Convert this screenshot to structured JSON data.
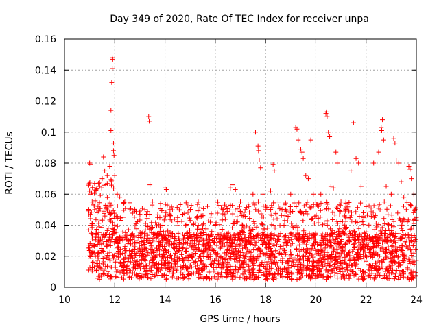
{
  "chart_data": {
    "type": "scatter",
    "title": "Day 349 of 2020, Rate Of TEC Index for receiver unpa",
    "xlabel": "GPS time / hours",
    "ylabel": "ROTI / TECUs",
    "xlim": [
      10,
      24
    ],
    "ylim": [
      0,
      0.16
    ],
    "x_ticks": [
      10,
      12,
      14,
      16,
      18,
      20,
      22,
      24
    ],
    "x_tick_labels": [
      "10",
      "12",
      "14",
      "16",
      "18",
      "20",
      "22",
      "24"
    ],
    "y_ticks": [
      0,
      0.02,
      0.04,
      0.06,
      0.08,
      0.1,
      0.12,
      0.14,
      0.16
    ],
    "y_tick_labels": [
      "0",
      "0.02",
      "0.04",
      "0.06",
      "0.08",
      "0.1",
      "0.12",
      "0.14",
      "0.16"
    ],
    "grid": true,
    "marker": "+",
    "color": "#ff0000",
    "series": [
      {
        "name": "ROTI",
        "points": [
          [
            11.0,
            0.08
          ],
          [
            11.05,
            0.079
          ],
          [
            11.0,
            0.062
          ],
          [
            11.05,
            0.06
          ],
          [
            11.1,
            0.055
          ],
          [
            11.2,
            0.05
          ],
          [
            11.3,
            0.048
          ],
          [
            11.4,
            0.065
          ],
          [
            11.5,
            0.07
          ],
          [
            11.55,
            0.084
          ],
          [
            11.6,
            0.075
          ],
          [
            11.7,
            0.072
          ],
          [
            11.8,
            0.078
          ],
          [
            11.85,
            0.101
          ],
          [
            11.85,
            0.114
          ],
          [
            11.88,
            0.132
          ],
          [
            11.9,
            0.141
          ],
          [
            11.9,
            0.148
          ],
          [
            11.92,
            0.147
          ],
          [
            11.95,
            0.093
          ],
          [
            11.95,
            0.088
          ],
          [
            11.97,
            0.085
          ],
          [
            12.0,
            0.072
          ],
          [
            12.1,
            0.06
          ],
          [
            12.2,
            0.058
          ],
          [
            12.4,
            0.055
          ],
          [
            12.6,
            0.05
          ],
          [
            12.8,
            0.049
          ],
          [
            13.0,
            0.047
          ],
          [
            13.2,
            0.05
          ],
          [
            13.35,
            0.11
          ],
          [
            13.37,
            0.107
          ],
          [
            13.4,
            0.066
          ],
          [
            13.5,
            0.055
          ],
          [
            13.7,
            0.045
          ],
          [
            14.0,
            0.064
          ],
          [
            14.05,
            0.063
          ],
          [
            14.2,
            0.05
          ],
          [
            14.5,
            0.045
          ],
          [
            15.0,
            0.043
          ],
          [
            15.5,
            0.038
          ],
          [
            15.8,
            0.042
          ],
          [
            16.0,
            0.04
          ],
          [
            16.3,
            0.05
          ],
          [
            16.6,
            0.064
          ],
          [
            16.7,
            0.066
          ],
          [
            16.8,
            0.063
          ],
          [
            17.0,
            0.055
          ],
          [
            17.2,
            0.05
          ],
          [
            17.5,
            0.06
          ],
          [
            17.6,
            0.1
          ],
          [
            17.7,
            0.091
          ],
          [
            17.72,
            0.088
          ],
          [
            17.75,
            0.082
          ],
          [
            17.8,
            0.077
          ],
          [
            17.9,
            0.06
          ],
          [
            18.0,
            0.05
          ],
          [
            18.2,
            0.062
          ],
          [
            18.3,
            0.079
          ],
          [
            18.35,
            0.075
          ],
          [
            18.5,
            0.055
          ],
          [
            18.8,
            0.05
          ],
          [
            19.0,
            0.06
          ],
          [
            19.2,
            0.103
          ],
          [
            19.25,
            0.102
          ],
          [
            19.3,
            0.095
          ],
          [
            19.4,
            0.089
          ],
          [
            19.45,
            0.087
          ],
          [
            19.5,
            0.083
          ],
          [
            19.6,
            0.072
          ],
          [
            19.7,
            0.07
          ],
          [
            19.8,
            0.095
          ],
          [
            19.9,
            0.06
          ],
          [
            20.0,
            0.055
          ],
          [
            20.2,
            0.06
          ],
          [
            20.4,
            0.112
          ],
          [
            20.42,
            0.113
          ],
          [
            20.45,
            0.11
          ],
          [
            20.5,
            0.1
          ],
          [
            20.55,
            0.097
          ],
          [
            20.6,
            0.065
          ],
          [
            20.7,
            0.064
          ],
          [
            20.8,
            0.087
          ],
          [
            20.85,
            0.08
          ],
          [
            21.0,
            0.055
          ],
          [
            21.2,
            0.05
          ],
          [
            21.4,
            0.075
          ],
          [
            21.5,
            0.106
          ],
          [
            21.6,
            0.083
          ],
          [
            21.7,
            0.08
          ],
          [
            21.8,
            0.065
          ],
          [
            22.0,
            0.052
          ],
          [
            22.2,
            0.051
          ],
          [
            22.3,
            0.08
          ],
          [
            22.5,
            0.087
          ],
          [
            22.6,
            0.103
          ],
          [
            22.62,
            0.101
          ],
          [
            22.65,
            0.108
          ],
          [
            22.7,
            0.095
          ],
          [
            22.8,
            0.065
          ],
          [
            23.0,
            0.06
          ],
          [
            23.1,
            0.096
          ],
          [
            23.15,
            0.093
          ],
          [
            23.2,
            0.082
          ],
          [
            23.3,
            0.08
          ],
          [
            23.4,
            0.068
          ],
          [
            23.5,
            0.058
          ],
          [
            23.6,
            0.05
          ],
          [
            23.7,
            0.078
          ],
          [
            23.75,
            0.076
          ],
          [
            23.8,
            0.07
          ],
          [
            23.9,
            0.06
          ],
          [
            24.0,
            0.045
          ]
        ],
        "cluster": {
          "x_range": [
            10.95,
            24.0
          ],
          "typical_range": [
            0.005,
            0.035
          ],
          "note": "dense band of observations across the whole time span"
        }
      }
    ]
  }
}
